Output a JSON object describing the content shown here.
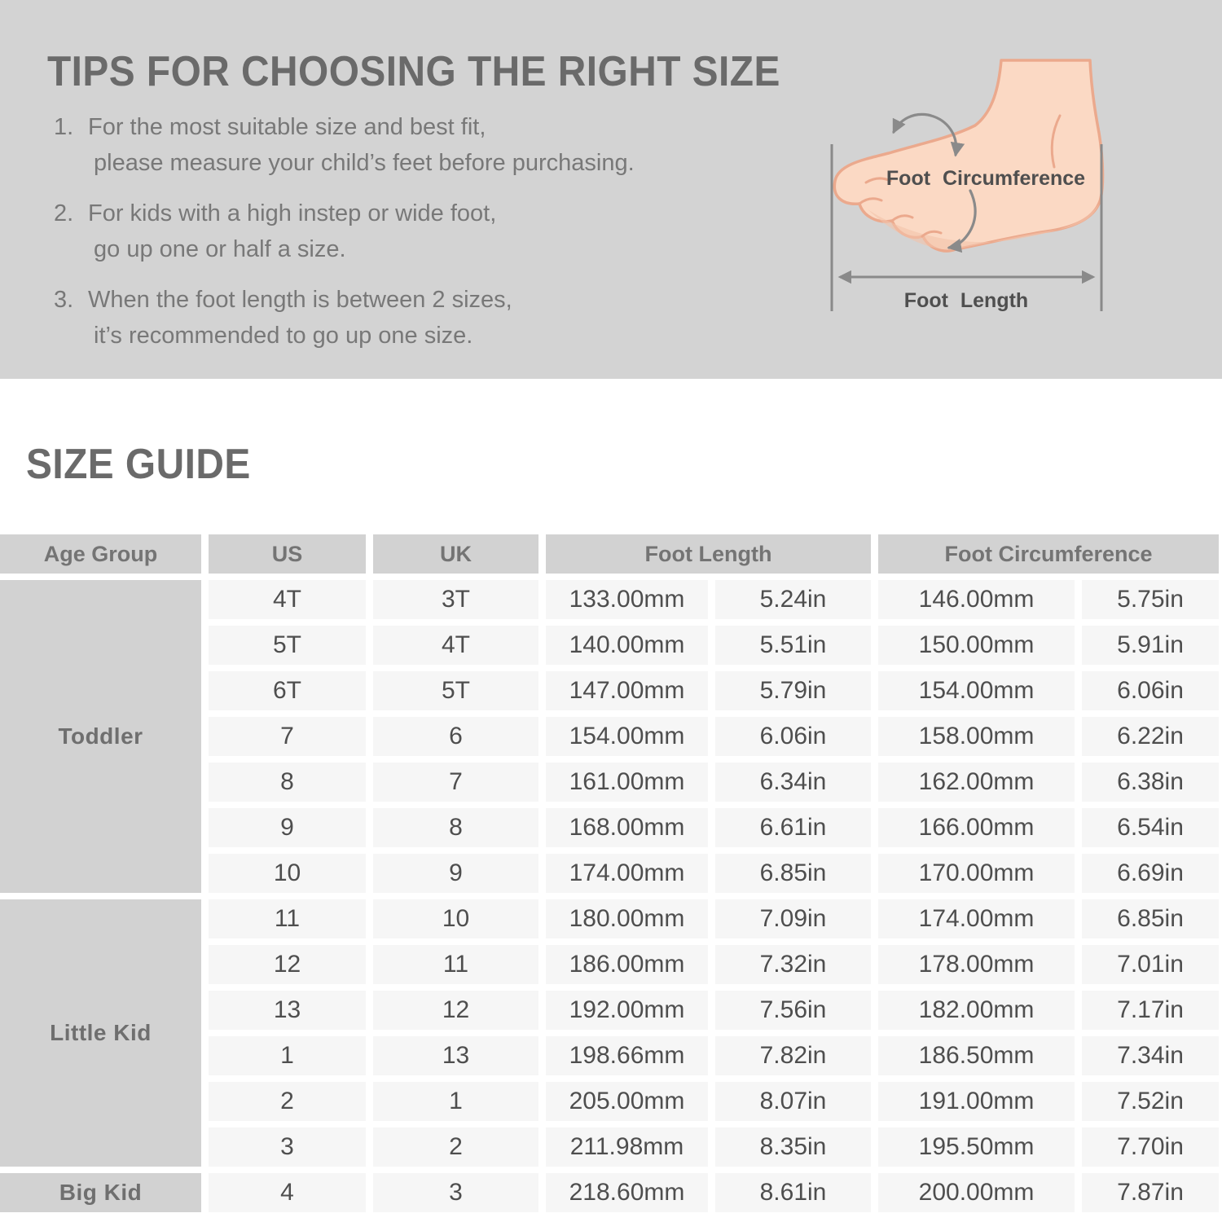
{
  "tips": {
    "title": "TIPS FOR CHOOSING THE RIGHT SIZE",
    "items": [
      {
        "num": "1.",
        "line1": "For the most suitable size and best fit,",
        "line2": "please measure your child’s feet before purchasing."
      },
      {
        "num": "2.",
        "line1": "For kids with a high instep or wide foot,",
        "line2": "go up one or half a size."
      },
      {
        "num": "3.",
        "line1": "When the foot length is between 2 sizes,",
        "line2": "it’s recommended to go up one size."
      }
    ]
  },
  "foot_figure": {
    "circumference_label": "Foot Circumference",
    "length_label": "Foot Length"
  },
  "size_guide": {
    "title": "SIZE GUIDE",
    "table": {
      "headers": {
        "age_group": "Age Group",
        "us": "US",
        "uk": "UK",
        "foot_length": "Foot Length",
        "foot_circumference": "Foot Circumference"
      },
      "groups": [
        {
          "label": "Toddler",
          "rows": [
            {
              "us": "4T",
              "uk": "3T",
              "fl_mm": "133.00mm",
              "fl_in": "5.24in",
              "fc_mm": "146.00mm",
              "fc_in": "5.75in"
            },
            {
              "us": "5T",
              "uk": "4T",
              "fl_mm": "140.00mm",
              "fl_in": "5.51in",
              "fc_mm": "150.00mm",
              "fc_in": "5.91in"
            },
            {
              "us": "6T",
              "uk": "5T",
              "fl_mm": "147.00mm",
              "fl_in": "5.79in",
              "fc_mm": "154.00mm",
              "fc_in": "6.06in"
            },
            {
              "us": "7",
              "uk": "6",
              "fl_mm": "154.00mm",
              "fl_in": "6.06in",
              "fc_mm": "158.00mm",
              "fc_in": "6.22in"
            },
            {
              "us": "8",
              "uk": "7",
              "fl_mm": "161.00mm",
              "fl_in": "6.34in",
              "fc_mm": "162.00mm",
              "fc_in": "6.38in"
            },
            {
              "us": "9",
              "uk": "8",
              "fl_mm": "168.00mm",
              "fl_in": "6.61in",
              "fc_mm": "166.00mm",
              "fc_in": "6.54in"
            },
            {
              "us": "10",
              "uk": "9",
              "fl_mm": "174.00mm",
              "fl_in": "6.85in",
              "fc_mm": "170.00mm",
              "fc_in": "6.69in"
            }
          ]
        },
        {
          "label": "Little Kid",
          "rows": [
            {
              "us": "11",
              "uk": "10",
              "fl_mm": "180.00mm",
              "fl_in": "7.09in",
              "fc_mm": "174.00mm",
              "fc_in": "6.85in"
            },
            {
              "us": "12",
              "uk": "11",
              "fl_mm": "186.00mm",
              "fl_in": "7.32in",
              "fc_mm": "178.00mm",
              "fc_in": "7.01in"
            },
            {
              "us": "13",
              "uk": "12",
              "fl_mm": "192.00mm",
              "fl_in": "7.56in",
              "fc_mm": "182.00mm",
              "fc_in": "7.17in"
            },
            {
              "us": "1",
              "uk": "13",
              "fl_mm": "198.66mm",
              "fl_in": "7.82in",
              "fc_mm": "186.50mm",
              "fc_in": "7.34in"
            },
            {
              "us": "2",
              "uk": "1",
              "fl_mm": "205.00mm",
              "fl_in": "8.07in",
              "fc_mm": "191.00mm",
              "fc_in": "7.52in"
            },
            {
              "us": "3",
              "uk": "2",
              "fl_mm": "211.98mm",
              "fl_in": "8.35in",
              "fc_mm": "195.50mm",
              "fc_in": "7.70in"
            }
          ]
        },
        {
          "label": "Big Kid",
          "rows": [
            {
              "us": "4",
              "uk": "3",
              "fl_mm": "218.60mm",
              "fl_in": "8.61in",
              "fc_mm": "200.00mm",
              "fc_in": "7.87in"
            }
          ]
        }
      ]
    }
  },
  "colors": {
    "banner_bg": "#d3d3d3",
    "header_cell_bg": "#d2d2d2",
    "body_cell_bg": "#f6f6f6",
    "title_text": "#6a6a6a",
    "body_text": "#4e4e4e",
    "foot_skin": "#fbd9c4",
    "foot_outline": "#eba98d",
    "arrow_gray": "#8a8a8a"
  }
}
